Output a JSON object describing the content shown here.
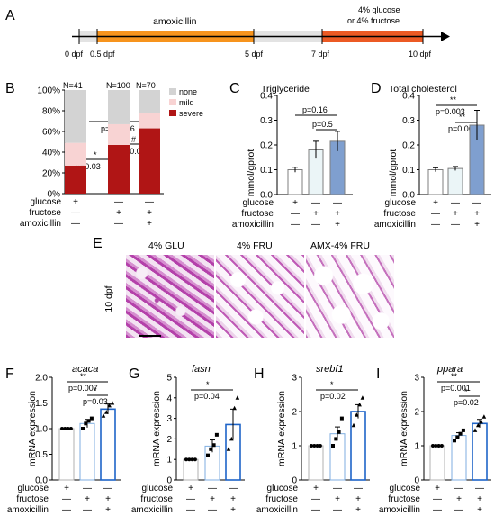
{
  "colors": {
    "amox_bar": "#f7941d",
    "grey_bar": "#e3e3e3",
    "sugar_bar": "#ec5a24",
    "none": "#d3d3d3",
    "mild": "#f8d3d3",
    "severe": "#b01515",
    "glu": "#ffffff",
    "fru": "#ebf5f7",
    "amx": "#7f9fcf",
    "amx_outline": "#1e64c8"
  },
  "panels": {
    "a": "A",
    "b": "B",
    "c": "C",
    "d": "D",
    "e": "E",
    "f": "F",
    "g": "G",
    "h": "H",
    "i": "I"
  },
  "timeline": {
    "ticks": [
      "0 dpf",
      "0.5 dpf",
      "5 dpf",
      "7 dpf",
      "10 dpf"
    ],
    "amox_label": "amoxicillin",
    "sugar_label_1": "4% glucose",
    "sugar_label_2": "or 4% fructose"
  },
  "treatments": {
    "rows": [
      "glucose",
      "fructose",
      "amoxicillin"
    ],
    "signs": [
      [
        "+",
        "—",
        "—"
      ],
      [
        "—",
        "+",
        "+"
      ],
      [
        "—",
        "—",
        "+"
      ]
    ]
  },
  "panel_b": {
    "n_labels": [
      "N=41",
      "N=100",
      "N=70"
    ],
    "legend": [
      "none",
      "mild",
      "severe"
    ],
    "sig": [
      "***",
      "p=0.0006",
      "*",
      "p=0.03",
      "#",
      "p=0.04"
    ]
  },
  "panel_c": {
    "title": "Triglyceride",
    "ylabel": "mmol/gprot",
    "sig": [
      "p=0.16",
      "p=0.5"
    ]
  },
  "panel_d": {
    "title": "Total cholesterol",
    "ylabel": "mmol/gprot",
    "sig": [
      "**",
      "p=0.003",
      "**",
      "p=0.003"
    ]
  },
  "panel_e": {
    "headers": [
      "4% GLU",
      "4% FRU",
      "AMX-4% FRU"
    ],
    "row_label": "10 dpf"
  },
  "panel_f": {
    "gene": "acaca",
    "ylabel": "mRNA expression",
    "sig": [
      "**",
      "p=0.007",
      "*",
      "p=0.03"
    ]
  },
  "panel_g": {
    "gene": "fasn",
    "ylabel": "mRNA expression",
    "sig": [
      "*",
      "p=0.04"
    ]
  },
  "panel_h": {
    "gene": "srebf1",
    "ylabel": "mRNA expression",
    "sig": [
      "*",
      "p=0.02"
    ]
  },
  "panel_i": {
    "gene": "ppara",
    "ylabel": "mRNA expression",
    "sig": [
      "**",
      "p=0.001",
      "*",
      "p=0.02"
    ]
  },
  "chart_data": [
    {
      "id": "B",
      "type": "bar",
      "categories": [
        "glucose",
        "fructose",
        "amoxicillin + fructose"
      ],
      "series": [
        {
          "name": "severe",
          "values": [
            27,
            47,
            63
          ]
        },
        {
          "name": "mild",
          "values": [
            22,
            20,
            15
          ]
        },
        {
          "name": "none",
          "values": [
            51,
            33,
            22
          ]
        }
      ],
      "ylim": [
        0,
        100
      ],
      "yticks": [
        "0%",
        "20%",
        "40%",
        "60%",
        "80%",
        "100%"
      ],
      "stacked": true
    },
    {
      "id": "C",
      "type": "bar",
      "title": "Triglyceride",
      "ylabel": "mmol/gprot",
      "categories": [
        "glucose",
        "fructose",
        "amoxicillin + fructose"
      ],
      "values": [
        0.1,
        0.18,
        0.215
      ],
      "errors": [
        0.01,
        0.035,
        0.04
      ],
      "ylim": [
        0,
        0.4
      ],
      "yticks": [
        "0.0",
        "0.1",
        "0.2",
        "0.3",
        "0.4"
      ]
    },
    {
      "id": "D",
      "type": "bar",
      "title": "Total cholesterol",
      "ylabel": "mmol/gprot",
      "categories": [
        "glucose",
        "fructose",
        "amoxicillin + fructose"
      ],
      "values": [
        0.1,
        0.105,
        0.28
      ],
      "errors": [
        0.008,
        0.008,
        0.06
      ],
      "ylim": [
        0,
        0.4
      ],
      "yticks": [
        "0.0",
        "0.1",
        "0.2",
        "0.3",
        "0.4"
      ]
    },
    {
      "id": "F",
      "type": "bar",
      "title": "acaca",
      "ylabel": "mRNA expression",
      "categories": [
        "glucose",
        "fructose",
        "amoxicillin + fructose"
      ],
      "values": [
        1.0,
        1.1,
        1.38
      ],
      "errors": [
        0.0,
        0.08,
        0.1
      ],
      "points": [
        [
          1,
          1,
          1,
          1
        ],
        [
          1.0,
          1.1,
          1.15,
          1.2
        ],
        [
          1.25,
          1.32,
          1.45,
          1.5
        ]
      ],
      "ylim": [
        0,
        2.0
      ],
      "yticks": [
        "0.0",
        "0.5",
        "1.0",
        "1.5",
        "2.0"
      ]
    },
    {
      "id": "G",
      "type": "bar",
      "title": "fasn",
      "ylabel": "mRNA expression",
      "categories": [
        "glucose",
        "fructose",
        "amoxicillin + fructose"
      ],
      "values": [
        1.0,
        1.65,
        2.7
      ],
      "errors": [
        0.0,
        0.3,
        0.75
      ],
      "points": [
        [
          1,
          1,
          1,
          1
        ],
        [
          1.2,
          1.5,
          1.7,
          2.2
        ],
        [
          1.5,
          2.0,
          3.5,
          4.0
        ]
      ],
      "ylim": [
        0,
        5
      ],
      "yticks": [
        "0",
        "1",
        "2",
        "3",
        "4",
        "5"
      ]
    },
    {
      "id": "H",
      "type": "bar",
      "title": "srebf1",
      "ylabel": "mRNA expression",
      "categories": [
        "glucose",
        "fructose",
        "amoxicillin + fructose"
      ],
      "values": [
        1.0,
        1.35,
        2.0
      ],
      "errors": [
        0.0,
        0.2,
        0.2
      ],
      "points": [
        [
          1,
          1,
          1,
          1
        ],
        [
          1.0,
          1.2,
          1.4,
          1.8
        ],
        [
          1.6,
          1.9,
          2.2,
          2.4
        ]
      ],
      "ylim": [
        0,
        3
      ],
      "yticks": [
        "0",
        "1",
        "2",
        "3"
      ]
    },
    {
      "id": "I",
      "type": "bar",
      "title": "ppara",
      "ylabel": "mRNA expression",
      "categories": [
        "glucose",
        "fructose",
        "amoxicillin + fructose"
      ],
      "values": [
        1.0,
        1.3,
        1.65
      ],
      "errors": [
        0.0,
        0.08,
        0.12
      ],
      "points": [
        [
          1,
          1,
          1,
          1
        ],
        [
          1.15,
          1.25,
          1.35,
          1.45
        ],
        [
          1.45,
          1.6,
          1.7,
          1.85
        ]
      ],
      "ylim": [
        0,
        3
      ],
      "yticks": [
        "0",
        "1",
        "2",
        "3"
      ]
    }
  ]
}
